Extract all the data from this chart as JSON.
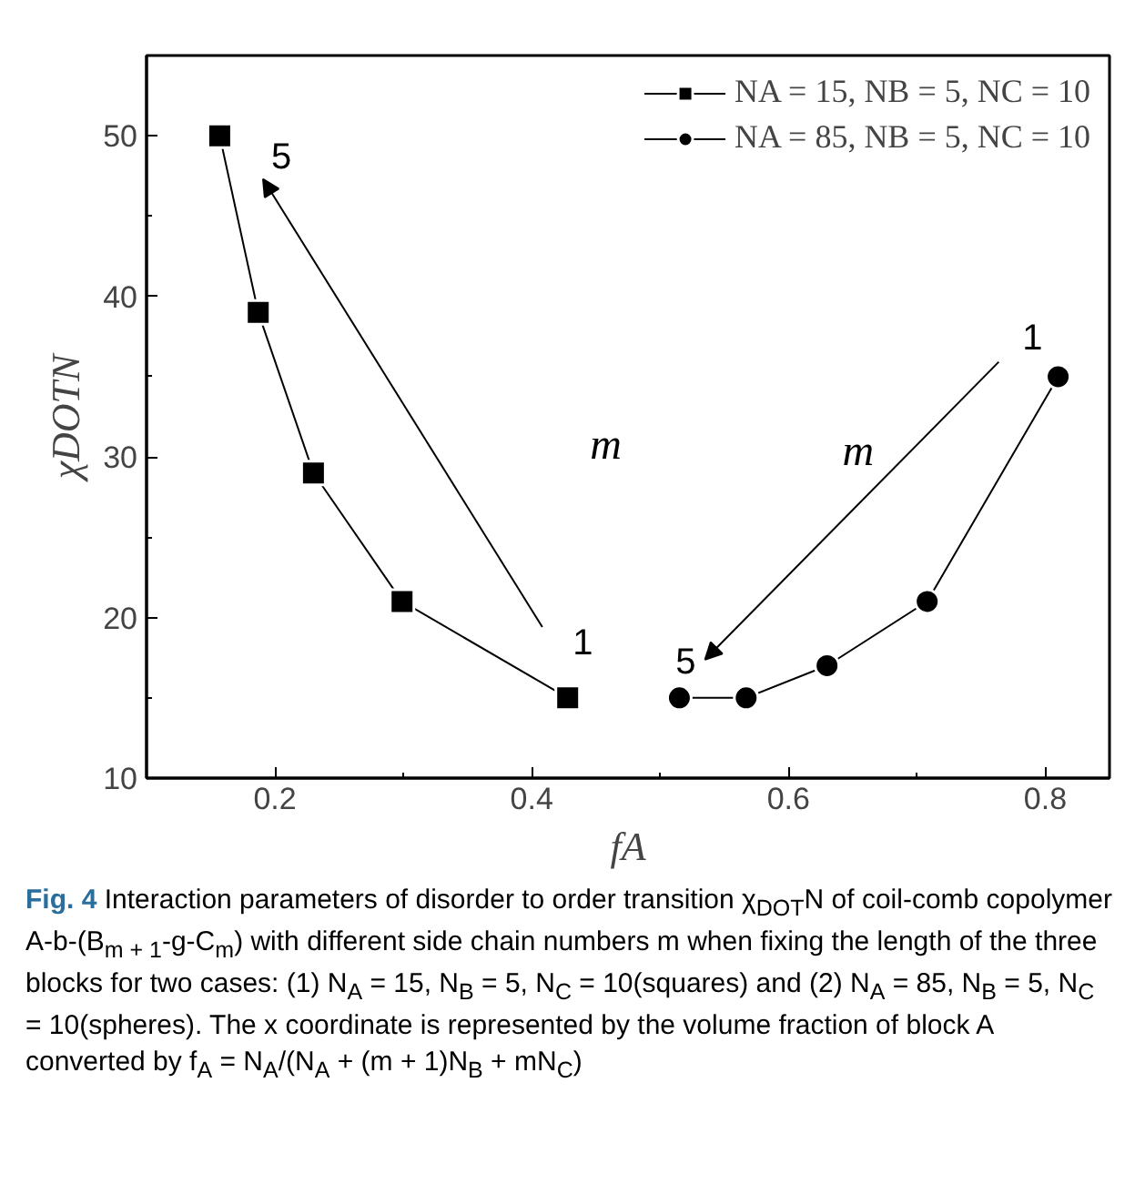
{
  "chart_data": {
    "type": "line",
    "xlabel": "fA",
    "ylabel": "χDOTN",
    "xlim": [
      0.1,
      0.85
    ],
    "ylim": [
      10,
      55
    ],
    "xticks": [
      0.2,
      0.4,
      0.6,
      0.8
    ],
    "yticks": [
      10,
      20,
      30,
      40,
      50
    ],
    "grid": false,
    "legend": "top right",
    "series": [
      {
        "name": "NA = 15, NB = 5, NC = 10",
        "color": "#000000",
        "marker": "square",
        "x": [
          0.157,
          0.187,
          0.23,
          0.299,
          0.428
        ],
        "values": [
          50,
          39,
          29,
          21,
          15
        ]
      },
      {
        "name": "NA = 85, NB = 5, NC = 10",
        "color": "#000000",
        "marker": "circle",
        "x": [
          0.515,
          0.567,
          0.63,
          0.708,
          0.81
        ],
        "values": [
          15,
          15,
          17,
          21,
          35
        ]
      }
    ],
    "annotations": [
      "1",
      "5",
      "m",
      "1",
      "5",
      "m",
      "Fig. 4 Interaction parameters of disorder to order transition χ$_{DOT}$N of coil-comb copolymer A-b-(B$_{m + 1}$-g-C$_{m}$) with different side chain numbers m when fixing the length of the three blocks for two cases: (1) N$_{A}$ = 15, N$_{B}$ = 5, N$_{C}$ = 10(squares) and (2) N$_{A}$ = 85, N$_{B}$ = 5, N$_{C}$ = 10(spheres). The x coordinate is represented by the volume fraction of block A converted by f$_{A}$ = N$_{A}$/(N$_{A}$ + (m + 1)N$_{B}$ + mN$_{C}$)"
    ]
  }
}
